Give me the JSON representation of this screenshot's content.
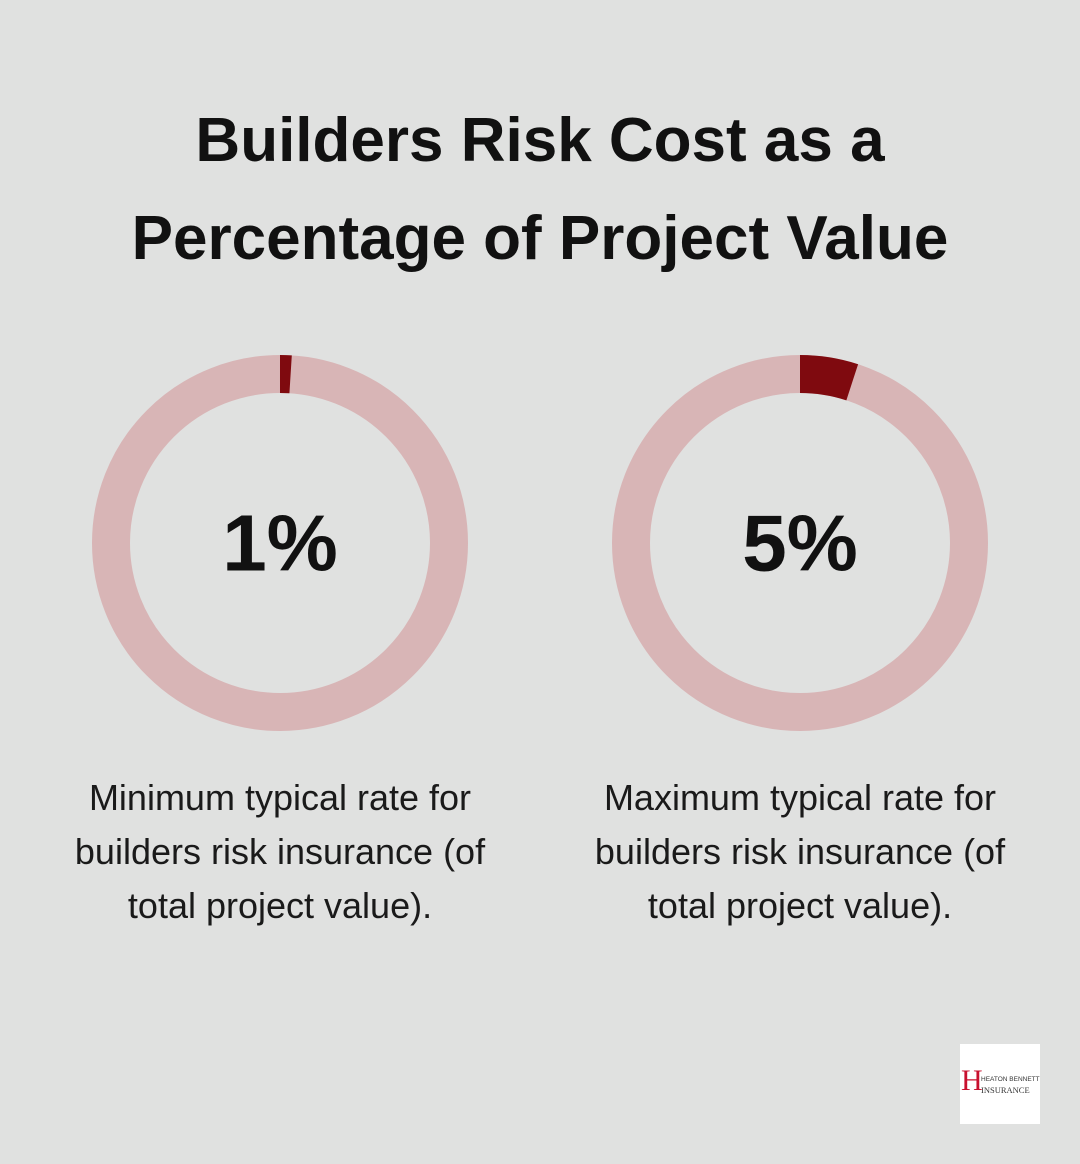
{
  "title": "Builders Risk Cost as a Percentage of Project Value",
  "chart_data": [
    {
      "type": "donut",
      "values": [
        1
      ],
      "value_labels": [
        "1%"
      ],
      "color": "#7f0a0f",
      "track_color": "#d8b5b6",
      "caption": "Minimum typical rate for builders risk insurance (of total project value)."
    },
    {
      "type": "donut",
      "values": [
        5
      ],
      "value_labels": [
        "5%"
      ],
      "color": "#7f0a0f",
      "track_color": "#d8b5b6",
      "caption": "Maximum typical rate for builders risk insurance (of total project value)."
    }
  ],
  "logo": {
    "letter": "H",
    "line1": "HEATON BENNETT",
    "line2": "INSURANCE"
  }
}
